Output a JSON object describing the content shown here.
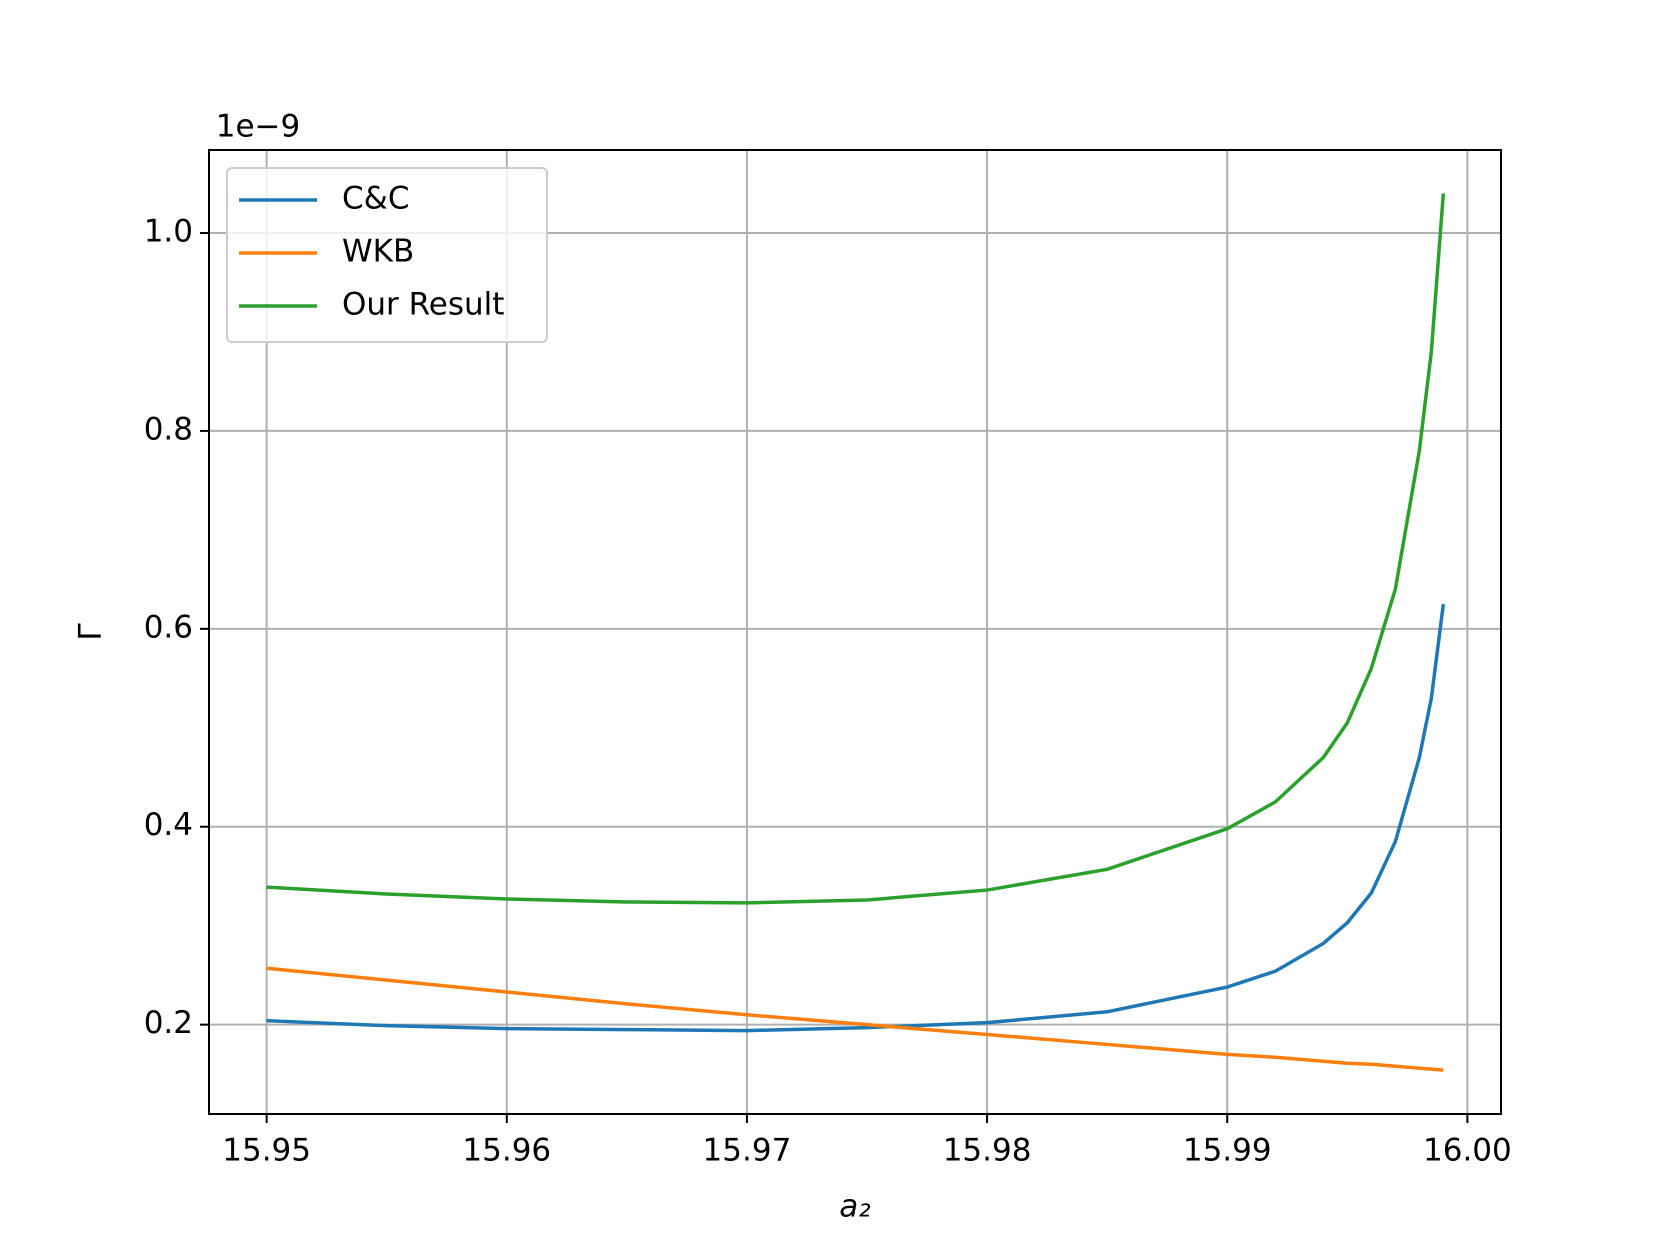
{
  "chart_data": {
    "type": "line",
    "xlabel": "a₂",
    "ylabel": "Γ",
    "offset_label": "1e−9",
    "x": [
      15.95,
      15.955,
      15.96,
      15.965,
      15.97,
      15.975,
      15.98,
      15.985,
      15.99,
      15.992,
      15.994,
      15.995,
      15.996,
      15.997,
      15.998,
      15.9985,
      15.999
    ],
    "series": [
      {
        "name": "C&C",
        "color": "#1f77b4",
        "values": [
          0.204,
          0.199,
          0.196,
          0.195,
          0.194,
          0.197,
          0.202,
          0.213,
          0.238,
          0.254,
          0.282,
          0.303,
          0.333,
          0.385,
          0.47,
          0.53,
          0.625
        ]
      },
      {
        "name": "WKB",
        "color": "#ff7f0e",
        "values": [
          0.257,
          0.245,
          0.233,
          0.221,
          0.21,
          0.2,
          0.19,
          0.18,
          0.17,
          0.167,
          0.163,
          0.161,
          0.16,
          0.158,
          0.156,
          0.155,
          0.154
        ]
      },
      {
        "name": "Our Result",
        "color": "#2ca02c",
        "values": [
          0.339,
          0.332,
          0.327,
          0.324,
          0.323,
          0.326,
          0.336,
          0.357,
          0.398,
          0.425,
          0.47,
          0.505,
          0.56,
          0.64,
          0.78,
          0.88,
          1.04
        ]
      }
    ],
    "xlim": [
      15.9476,
      16.0014
    ],
    "ylim": [
      0.1097,
      1.0839
    ],
    "xticks": [
      15.95,
      15.96,
      15.97,
      15.98,
      15.99,
      {
        "value": 16,
        "label": "16.00"
      }
    ],
    "yticks": [
      0.2,
      0.4,
      0.6,
      0.8,
      {
        "value": 1,
        "label": "1.0"
      }
    ],
    "grid": true,
    "legend": "upper-left"
  }
}
